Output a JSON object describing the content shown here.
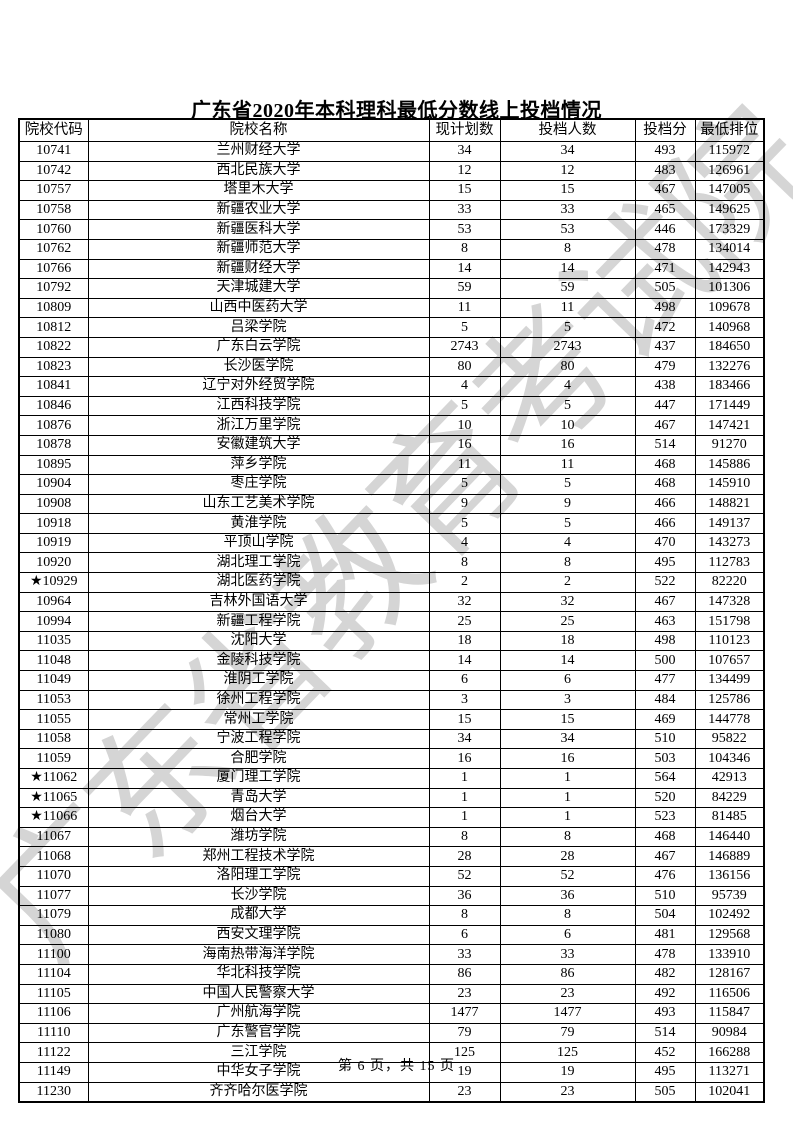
{
  "page": {
    "title": "广东省2020年本科理科最低分数线上投档情况",
    "watermark": "广东省教育考试院",
    "footer": "第 6 页，共 15 页"
  },
  "colors": {
    "text": "#000000",
    "border": "#000000",
    "watermark": "#c7c7c7",
    "background": "#ffffff"
  },
  "table": {
    "columns": [
      "院校代码",
      "院校名称",
      "现计划数",
      "投档人数",
      "投档分",
      "最低排位"
    ],
    "column_keys": [
      "code",
      "name",
      "plan",
      "count",
      "score",
      "rank"
    ],
    "rows": [
      [
        "10741",
        "兰州财经大学",
        "34",
        "34",
        "493",
        "115972"
      ],
      [
        "10742",
        "西北民族大学",
        "12",
        "12",
        "483",
        "126961"
      ],
      [
        "10757",
        "塔里木大学",
        "15",
        "15",
        "467",
        "147005"
      ],
      [
        "10758",
        "新疆农业大学",
        "33",
        "33",
        "465",
        "149625"
      ],
      [
        "10760",
        "新疆医科大学",
        "53",
        "53",
        "446",
        "173329"
      ],
      [
        "10762",
        "新疆师范大学",
        "8",
        "8",
        "478",
        "134014"
      ],
      [
        "10766",
        "新疆财经大学",
        "14",
        "14",
        "471",
        "142943"
      ],
      [
        "10792",
        "天津城建大学",
        "59",
        "59",
        "505",
        "101306"
      ],
      [
        "10809",
        "山西中医药大学",
        "11",
        "11",
        "498",
        "109678"
      ],
      [
        "10812",
        "吕梁学院",
        "5",
        "5",
        "472",
        "140968"
      ],
      [
        "10822",
        "广东白云学院",
        "2743",
        "2743",
        "437",
        "184650"
      ],
      [
        "10823",
        "长沙医学院",
        "80",
        "80",
        "479",
        "132276"
      ],
      [
        "10841",
        "辽宁对外经贸学院",
        "4",
        "4",
        "438",
        "183466"
      ],
      [
        "10846",
        "江西科技学院",
        "5",
        "5",
        "447",
        "171449"
      ],
      [
        "10876",
        "浙江万里学院",
        "10",
        "10",
        "467",
        "147421"
      ],
      [
        "10878",
        "安徽建筑大学",
        "16",
        "16",
        "514",
        "91270"
      ],
      [
        "10895",
        "萍乡学院",
        "11",
        "11",
        "468",
        "145886"
      ],
      [
        "10904",
        "枣庄学院",
        "5",
        "5",
        "468",
        "145910"
      ],
      [
        "10908",
        "山东工艺美术学院",
        "9",
        "9",
        "466",
        "148821"
      ],
      [
        "10918",
        "黄淮学院",
        "5",
        "5",
        "466",
        "149137"
      ],
      [
        "10919",
        "平顶山学院",
        "4",
        "4",
        "470",
        "143273"
      ],
      [
        "10920",
        "湖北理工学院",
        "8",
        "8",
        "495",
        "112783"
      ],
      [
        "★10929",
        "湖北医药学院",
        "2",
        "2",
        "522",
        "82220"
      ],
      [
        "10964",
        "吉林外国语大学",
        "32",
        "32",
        "467",
        "147328"
      ],
      [
        "10994",
        "新疆工程学院",
        "25",
        "25",
        "463",
        "151798"
      ],
      [
        "11035",
        "沈阳大学",
        "18",
        "18",
        "498",
        "110123"
      ],
      [
        "11048",
        "金陵科技学院",
        "14",
        "14",
        "500",
        "107657"
      ],
      [
        "11049",
        "淮阴工学院",
        "6",
        "6",
        "477",
        "134499"
      ],
      [
        "11053",
        "徐州工程学院",
        "3",
        "3",
        "484",
        "125786"
      ],
      [
        "11055",
        "常州工学院",
        "15",
        "15",
        "469",
        "144778"
      ],
      [
        "11058",
        "宁波工程学院",
        "34",
        "34",
        "510",
        "95822"
      ],
      [
        "11059",
        "合肥学院",
        "16",
        "16",
        "503",
        "104346"
      ],
      [
        "★11062",
        "厦门理工学院",
        "1",
        "1",
        "564",
        "42913"
      ],
      [
        "★11065",
        "青岛大学",
        "1",
        "1",
        "520",
        "84229"
      ],
      [
        "★11066",
        "烟台大学",
        "1",
        "1",
        "523",
        "81485"
      ],
      [
        "11067",
        "潍坊学院",
        "8",
        "8",
        "468",
        "146440"
      ],
      [
        "11068",
        "郑州工程技术学院",
        "28",
        "28",
        "467",
        "146889"
      ],
      [
        "11070",
        "洛阳理工学院",
        "52",
        "52",
        "476",
        "136156"
      ],
      [
        "11077",
        "长沙学院",
        "36",
        "36",
        "510",
        "95739"
      ],
      [
        "11079",
        "成都大学",
        "8",
        "8",
        "504",
        "102492"
      ],
      [
        "11080",
        "西安文理学院",
        "6",
        "6",
        "481",
        "129568"
      ],
      [
        "11100",
        "海南热带海洋学院",
        "33",
        "33",
        "478",
        "133910"
      ],
      [
        "11104",
        "华北科技学院",
        "86",
        "86",
        "482",
        "128167"
      ],
      [
        "11105",
        "中国人民警察大学",
        "23",
        "23",
        "492",
        "116506"
      ],
      [
        "11106",
        "广州航海学院",
        "1477",
        "1477",
        "493",
        "115847"
      ],
      [
        "11110",
        "广东警官学院",
        "79",
        "79",
        "514",
        "90984"
      ],
      [
        "11122",
        "三江学院",
        "125",
        "125",
        "452",
        "166288"
      ],
      [
        "11149",
        "中华女子学院",
        "19",
        "19",
        "495",
        "113271"
      ],
      [
        "11230",
        "齐齐哈尔医学院",
        "23",
        "23",
        "505",
        "102041"
      ]
    ]
  }
}
